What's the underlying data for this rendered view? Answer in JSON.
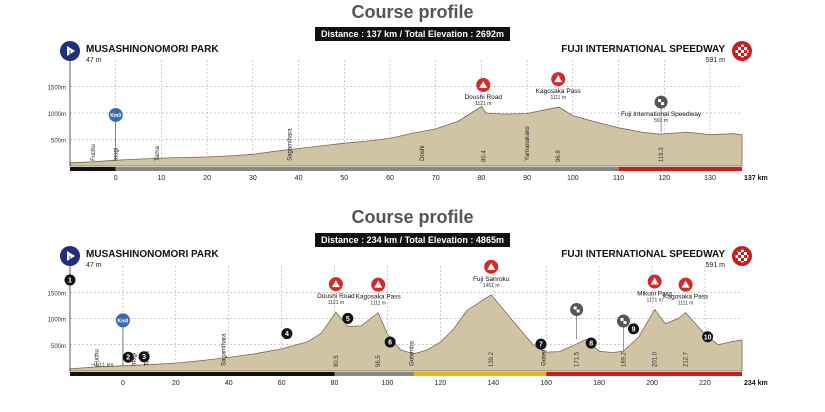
{
  "colors": {
    "terrain": "#d1c4a4",
    "terrain_stroke": "#7a6a4a",
    "grid": "#9a9a9a",
    "axis_black": "#111111",
    "axis_gray": "#888888",
    "axis_red": "#c81e1e",
    "axis_yellow": "#e2b52a",
    "start_blue": "#1f2f7a",
    "kom_red": "#d42a2a",
    "sprint_gray": "#555555"
  },
  "charts": [
    {
      "title": "Course profile",
      "summary": "Distance : 137 km / Total Elevation : 2692m",
      "start": {
        "name": "MUSASHINONOMORI PARK",
        "elev": "47 m"
      },
      "finish": {
        "name": "FUJI INTERNATIONAL SPEEDWAY",
        "elev": "591 m"
      },
      "unit": "137 km"
    },
    {
      "title": "Course profile",
      "summary": "Distance : 234 km / Total Elevation : 4865m",
      "start": {
        "name": "MUSASHINONOMORI PARK",
        "elev": "47 m"
      },
      "finish": {
        "name": "FUJI INTERNATIONAL SPEEDWAY",
        "elev": "591 m"
      },
      "unit": "234 km"
    }
  ],
  "chart_data": [
    {
      "type": "area",
      "xlabel": "",
      "ylabel": "",
      "xlim": [
        -10,
        137
      ],
      "ylim": [
        0,
        2000
      ],
      "yticks": [
        "1500m",
        "1000m",
        "500m"
      ],
      "ytick_values": [
        1500,
        1000,
        500
      ],
      "xticks": [
        0,
        10,
        20,
        30,
        40,
        50,
        60,
        70,
        80,
        90,
        100,
        110,
        120,
        130
      ],
      "profile_x": [
        -10,
        -5,
        0,
        5,
        10,
        15,
        20,
        25,
        30,
        35,
        40,
        45,
        50,
        55,
        60,
        65,
        70,
        75,
        80,
        81,
        85,
        90,
        95,
        97,
        100,
        105,
        110,
        115,
        119,
        125,
        130,
        135,
        137
      ],
      "profile_y": [
        60,
        80,
        110,
        130,
        150,
        160,
        170,
        190,
        220,
        280,
        330,
        380,
        430,
        470,
        520,
        620,
        700,
        850,
        1120,
        1000,
        980,
        990,
        1080,
        1111,
        950,
        830,
        720,
        640,
        600,
        640,
        590,
        610,
        591
      ],
      "axis_segments": [
        {
          "from": -10,
          "to": 0,
          "color": "black"
        },
        {
          "from": 0,
          "to": 110,
          "color": "gray"
        },
        {
          "from": 110,
          "to": 137,
          "color": "red"
        }
      ],
      "points": [
        {
          "x": 0,
          "label": "Km0",
          "kind": "start"
        },
        {
          "x": 80.4,
          "label": "Doushi Road",
          "elev": "1121 m",
          "kind": "kom"
        },
        {
          "x": 96.8,
          "label": "Kagosaka Pass",
          "elev": "1111 m",
          "kind": "kom"
        },
        {
          "x": 119.3,
          "label": "Fuji International Speedway",
          "elev": "591 m",
          "kind": "sprint"
        }
      ],
      "place_labels": [
        {
          "x": -5,
          "text": "Fuchu"
        },
        {
          "x": 0,
          "text": "Inagi"
        },
        {
          "x": 9,
          "text": "Tama"
        },
        {
          "x": 38,
          "text": "Sagamihara"
        },
        {
          "x": 67,
          "text": "Doshi"
        },
        {
          "x": 90,
          "text": "Yamanakako"
        }
      ],
      "km_markers": [
        {
          "x": 80.4,
          "text": "80.4"
        },
        {
          "x": 96.8,
          "text": "96.8"
        },
        {
          "x": 119.3,
          "text": "119.3"
        }
      ],
      "numbered": []
    },
    {
      "type": "area",
      "xlabel": "",
      "ylabel": "",
      "xlim": [
        -20,
        234
      ],
      "ylim": [
        0,
        2000
      ],
      "yticks": [
        "1500m",
        "1000m",
        "500m"
      ],
      "ytick_values": [
        1500,
        1000,
        500
      ],
      "xticks": [
        0,
        20,
        40,
        60,
        80,
        100,
        120,
        140,
        160,
        180,
        200,
        220
      ],
      "profile_x": [
        -20,
        -15,
        -10,
        0,
        5,
        10,
        20,
        30,
        40,
        50,
        60,
        70,
        75,
        80.5,
        85,
        90,
        96.5,
        100,
        105,
        110,
        115,
        120,
        125,
        130,
        139.2,
        145,
        150,
        155,
        160,
        165,
        170,
        175,
        180,
        185,
        189.2,
        195,
        201,
        205,
        210,
        212.7,
        215,
        220,
        225,
        230,
        234
      ],
      "profile_y": [
        40,
        60,
        80,
        100,
        110,
        120,
        150,
        200,
        260,
        330,
        420,
        560,
        720,
        1121,
        850,
        860,
        1111,
        700,
        400,
        330,
        400,
        550,
        800,
        1150,
        1451,
        1100,
        800,
        500,
        360,
        370,
        480,
        600,
        380,
        350,
        380,
        650,
        1171,
        900,
        1000,
        1111,
        980,
        700,
        500,
        560,
        591
      ],
      "axis_segments": [
        {
          "from": -20,
          "to": 80,
          "color": "black"
        },
        {
          "from": 80,
          "to": 110,
          "color": "gray"
        },
        {
          "from": 110,
          "to": 160,
          "color": "yellow"
        },
        {
          "from": 160,
          "to": 234,
          "color": "red"
        }
      ],
      "points": [
        {
          "x": 0,
          "label": "Km0",
          "kind": "start"
        },
        {
          "x": 80.5,
          "label": "Doushi Road",
          "elev": "1121 m",
          "kind": "kom"
        },
        {
          "x": 96.5,
          "label": "Kagosaka Pass",
          "elev": "1111 m",
          "kind": "kom"
        },
        {
          "x": 139.2,
          "label": "Fuji Sanroku",
          "elev": "1451 m",
          "kind": "kom"
        },
        {
          "x": 171.5,
          "label": "",
          "kind": "sprint"
        },
        {
          "x": 189.2,
          "label": "",
          "kind": "sprint"
        },
        {
          "x": 201,
          "label": "Mikuni Pass",
          "elev": "1171 m",
          "kind": "kom"
        },
        {
          "x": 212.7,
          "label": "Kagosaka Pass",
          "elev": "1111 m",
          "kind": "kom"
        }
      ],
      "place_labels": [
        {
          "x": -10,
          "text": "Fuchu"
        },
        {
          "x": 4,
          "text": "Inagi"
        },
        {
          "x": 9,
          "text": "Tama"
        },
        {
          "x": 38,
          "text": "Sagamihara"
        },
        {
          "x": 109,
          "text": "Gotemba"
        },
        {
          "x": 159,
          "text": "Gotemba"
        }
      ],
      "km_markers": [
        {
          "x": 80.5,
          "text": "80.5"
        },
        {
          "x": 96.5,
          "text": "96.5"
        },
        {
          "x": 139.2,
          "text": "139.2"
        },
        {
          "x": 171.5,
          "text": "171.5"
        },
        {
          "x": 189.2,
          "text": "189.2"
        },
        {
          "x": 201,
          "text": "201.0"
        },
        {
          "x": 212.7,
          "text": "212.7"
        }
      ],
      "numbered": [
        {
          "x": -20,
          "n": "1"
        },
        {
          "x": 2,
          "n": "2"
        },
        {
          "x": 8,
          "n": "3"
        },
        {
          "x": 62,
          "n": "4"
        },
        {
          "x": 85,
          "n": "5"
        },
        {
          "x": 101,
          "n": "6"
        },
        {
          "x": 158,
          "n": "7"
        },
        {
          "x": 177,
          "n": "8"
        },
        {
          "x": 193,
          "n": "9"
        },
        {
          "x": 221,
          "n": "10"
        }
      ],
      "extra_label": {
        "x": -10,
        "text": "ー10.1 km"
      }
    }
  ]
}
